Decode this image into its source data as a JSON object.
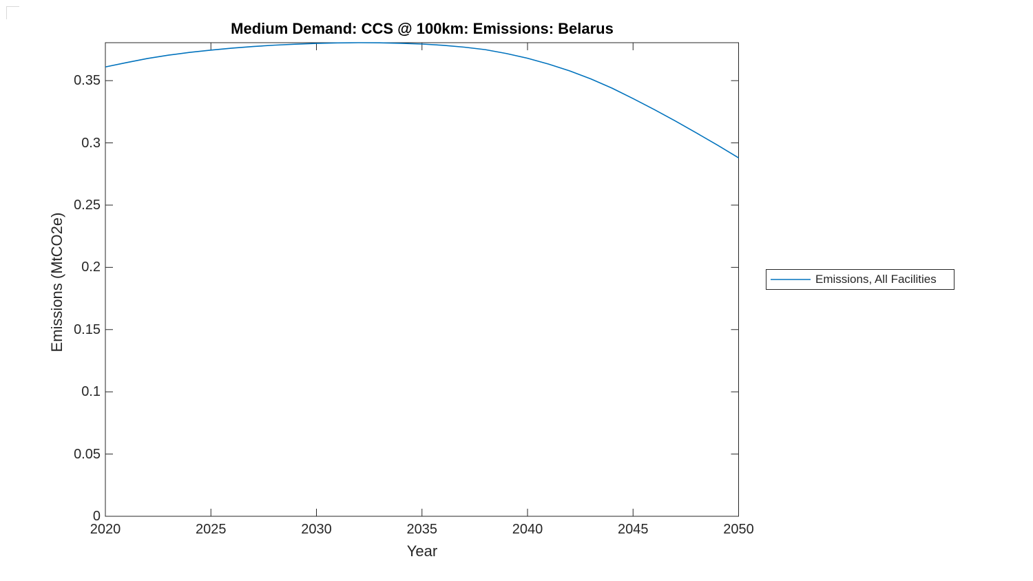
{
  "colors": {
    "axis": "#262626",
    "line": "#0072BD",
    "title_text": "#000000",
    "background": "#ffffff"
  },
  "chart_data": {
    "type": "line",
    "title": "Medium Demand: CCS @ 100km: Emissions: Belarus",
    "xlabel": "Year",
    "ylabel": "Emissions (MtCO2e)",
    "xlim": [
      2020,
      2050
    ],
    "ylim": [
      0,
      0.3805
    ],
    "xticks": [
      2020,
      2025,
      2030,
      2035,
      2040,
      2045,
      2050
    ],
    "yticks": [
      0,
      0.05,
      0.1,
      0.15,
      0.2,
      0.25,
      0.3,
      0.35
    ],
    "ytick_labels": [
      "0",
      "0.05",
      "0.1",
      "0.15",
      "0.2",
      "0.25",
      "0.3",
      "0.35"
    ],
    "grid": false,
    "box": true,
    "tick_direction": "in",
    "legend": {
      "position": "outside-right",
      "entries": [
        {
          "label": "Emissions, All Facilities",
          "color": "#0072BD",
          "style": "solid"
        }
      ]
    },
    "series": [
      {
        "name": "Emissions, All Facilities",
        "color": "#0072BD",
        "line_width": 1.6,
        "x": [
          2020,
          2021,
          2022,
          2023,
          2024,
          2025,
          2026,
          2027,
          2028,
          2029,
          2030,
          2031,
          2032,
          2033,
          2034,
          2035,
          2036,
          2037,
          2038,
          2039,
          2040,
          2041,
          2042,
          2043,
          2044,
          2045,
          2046,
          2047,
          2048,
          2049,
          2050
        ],
        "y": [
          0.361,
          0.3645,
          0.3678,
          0.3705,
          0.3727,
          0.3745,
          0.3761,
          0.3774,
          0.3785,
          0.3793,
          0.3799,
          0.3803,
          0.3805,
          0.3804,
          0.38,
          0.3794,
          0.3784,
          0.3769,
          0.3749,
          0.3718,
          0.368,
          0.3633,
          0.3578,
          0.3514,
          0.344,
          0.3356,
          0.3268,
          0.3176,
          0.308,
          0.2982,
          0.288
        ]
      }
    ]
  }
}
